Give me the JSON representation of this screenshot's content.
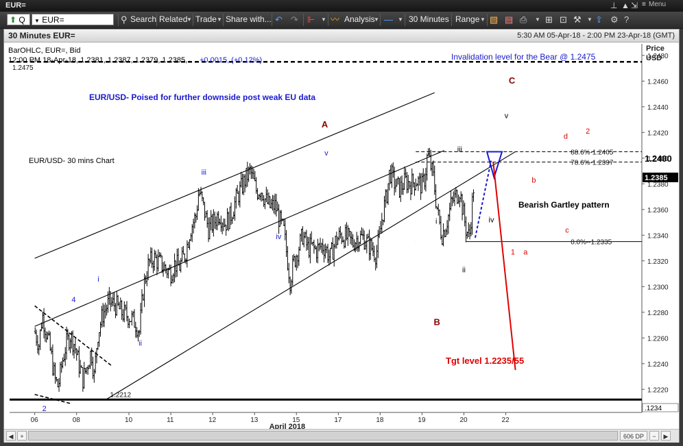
{
  "window": {
    "title": "EUR=",
    "menu_label": "Menu"
  },
  "toolbar": {
    "ric_prefix": "Q",
    "ric_value": "EUR=",
    "search": "Search",
    "related": "Related",
    "trade": "Trade",
    "share": "Share with...",
    "analysis": "Analysis",
    "interval": "30 Minutes",
    "range": "Range"
  },
  "chart_header": {
    "title": "30 Minutes EUR=",
    "date_range": "5:30 AM 05-Apr-18 - 2:00 PM 23-Apr-18 (GMT)"
  },
  "info": {
    "line1": "BarOHLC, EUR=, Bid",
    "line2_prefix": "12:00 PM 18-Apr-18, 1.2381, 1.2387, 1.2379, 1.2385,",
    "line2_change": "+0.0015, (+0.12%)"
  },
  "status": {
    "dp": "606 DP"
  },
  "colors": {
    "blue": "#1a1acc",
    "maroon": "#8b0000",
    "red": "#e00000",
    "bg": "#ffffff"
  },
  "chart_data": {
    "type": "bar",
    "title": "EUR/USD- Poised for further downside post weak EU data",
    "subtitle": "EUR/USD- 30 mins Chart",
    "y_axis_title": [
      "Price",
      "USD"
    ],
    "ylim": [
      1.2202,
      1.2489
    ],
    "y_ticks": [
      "1.2220",
      "1.2240",
      "1.2260",
      "1.2280",
      "1.2300",
      "1.2320",
      "1.2340",
      "1.2360",
      "1.2380",
      "1.2400",
      "1.2420",
      "1.2440",
      "1.2460",
      "1.2480"
    ],
    "x_ticks": [
      "06",
      "08",
      "10",
      "11",
      "12",
      "13",
      "15",
      "17",
      "18",
      "19",
      "20",
      "22"
    ],
    "x_axis_label": "April 2018",
    "last_price_label": "1.2385",
    "highlight_label": "1.2400",
    "corner_label": ".1234",
    "horizontal_levels": [
      {
        "value": 1.2475,
        "label": "1.2475",
        "style": "dashed-thick"
      },
      {
        "value": 1.2212,
        "label": "1.2212",
        "style": "solid-thick"
      },
      {
        "value": 1.2405,
        "label": "88.6%-1.2405",
        "style": "dashed"
      },
      {
        "value": 1.2397,
        "label": "78.6%-1.2397",
        "style": "dashed"
      },
      {
        "value": 1.2335,
        "label": "0.0%--1.2335",
        "style": "solid"
      }
    ],
    "annotations": {
      "invalidation": "Invalidation level for the Bear @ 1.2475",
      "pattern": "Bearish Gartley pattern",
      "target": "Tgt level 1.2235/55"
    },
    "wave_labels": [
      {
        "text": "A",
        "color": "maroon",
        "x": 6.85,
        "y": 1.2424
      },
      {
        "text": "B",
        "color": "maroon",
        "x": 9.53,
        "y": 1.227
      },
      {
        "text": "C",
        "color": "maroon",
        "x": 11.32,
        "y": 1.2458
      },
      {
        "text": "4",
        "color": "blue",
        "x": 0.88,
        "y": 1.2288
      },
      {
        "text": "i",
        "color": "blue",
        "x": 1.5,
        "y": 1.2304
      },
      {
        "text": "ii",
        "color": "blue",
        "x": 2.48,
        "y": 1.2254
      },
      {
        "text": "iii",
        "color": "blue",
        "x": 3.98,
        "y": 1.2387
      },
      {
        "text": "iv",
        "color": "blue",
        "x": 5.76,
        "y": 1.2337
      },
      {
        "text": "v",
        "color": "blue",
        "x": 6.92,
        "y": 1.2402
      },
      {
        "text": "i",
        "color": "black",
        "x": 9.57,
        "y": 1.2349
      },
      {
        "text": "ii",
        "color": "black",
        "x": 10.21,
        "y": 1.2311
      },
      {
        "text": "iii",
        "color": "black",
        "x": 10.09,
        "y": 1.2405
      },
      {
        "text": "iv",
        "color": "black",
        "x": 10.84,
        "y": 1.235
      },
      {
        "text": "v",
        "color": "black",
        "x": 11.22,
        "y": 1.2431
      },
      {
        "text": "1",
        "color": "red",
        "x": 11.37,
        "y": 1.2325
      },
      {
        "text": "a",
        "color": "red",
        "x": 11.67,
        "y": 1.2325
      },
      {
        "text": "b",
        "color": "red",
        "x": 11.87,
        "y": 1.2381
      },
      {
        "text": "c",
        "color": "red",
        "x": 12.67,
        "y": 1.2342
      },
      {
        "text": "d",
        "color": "red",
        "x": 12.63,
        "y": 1.2415
      },
      {
        "text": "2",
        "color": "red",
        "x": 13.16,
        "y": 1.2419
      },
      {
        "text": "2",
        "color": "blue",
        "x": 0.18,
        "y": 1.2203
      }
    ],
    "ohlc_series": {
      "name": "EUR=",
      "points": [
        [
          0.0,
          1.2265
        ],
        [
          0.1,
          1.2255
        ],
        [
          0.18,
          1.2278
        ],
        [
          0.3,
          1.2262
        ],
        [
          0.4,
          1.2245
        ],
        [
          0.48,
          1.2228
        ],
        [
          0.56,
          1.2222
        ],
        [
          0.65,
          1.224
        ],
        [
          0.75,
          1.2255
        ],
        [
          0.85,
          1.2262
        ],
        [
          0.95,
          1.2255
        ],
        [
          1.05,
          1.224
        ],
        [
          1.15,
          1.2228
        ],
        [
          1.25,
          1.2238
        ],
        [
          1.35,
          1.225
        ],
        [
          1.42,
          1.223
        ],
        [
          1.5,
          1.2262
        ],
        [
          1.62,
          1.2278
        ],
        [
          1.78,
          1.2288
        ],
        [
          1.95,
          1.2285
        ],
        [
          2.1,
          1.2279
        ],
        [
          2.25,
          1.2277
        ],
        [
          2.4,
          1.2272
        ],
        [
          2.5,
          1.2265
        ],
        [
          2.6,
          1.23
        ],
        [
          2.72,
          1.2318
        ],
        [
          2.85,
          1.2322
        ],
        [
          3.0,
          1.2318
        ],
        [
          3.15,
          1.2313
        ],
        [
          3.25,
          1.2311
        ],
        [
          3.35,
          1.2318
        ],
        [
          3.45,
          1.2315
        ],
        [
          3.6,
          1.2326
        ],
        [
          3.72,
          1.2345
        ],
        [
          3.85,
          1.2355
        ],
        [
          3.92,
          1.2375
        ],
        [
          4.02,
          1.2363
        ],
        [
          4.15,
          1.2345
        ],
        [
          4.28,
          1.235
        ],
        [
          4.4,
          1.2357
        ],
        [
          4.55,
          1.2349
        ],
        [
          4.68,
          1.2355
        ],
        [
          4.8,
          1.2367
        ],
        [
          4.95,
          1.2378
        ],
        [
          5.05,
          1.2385
        ],
        [
          5.15,
          1.239
        ],
        [
          5.22,
          1.2382
        ],
        [
          5.3,
          1.2374
        ],
        [
          5.4,
          1.2376
        ],
        [
          5.5,
          1.2368
        ],
        [
          5.62,
          1.2362
        ],
        [
          5.75,
          1.2363
        ],
        [
          5.85,
          1.2351
        ],
        [
          5.95,
          1.2343
        ],
        [
          6.02,
          1.2325
        ],
        [
          6.1,
          1.2305
        ],
        [
          6.18,
          1.2318
        ],
        [
          6.3,
          1.233
        ],
        [
          6.4,
          1.234
        ],
        [
          6.52,
          1.233
        ],
        [
          6.62,
          1.2331
        ],
        [
          6.72,
          1.2328
        ],
        [
          6.85,
          1.2332
        ],
        [
          6.95,
          1.233
        ],
        [
          7.05,
          1.2322
        ],
        [
          7.18,
          1.2335
        ],
        [
          7.3,
          1.234
        ],
        [
          7.45,
          1.2338
        ],
        [
          7.6,
          1.2334
        ],
        [
          7.72,
          1.2338
        ],
        [
          7.85,
          1.2338
        ],
        [
          7.95,
          1.2333
        ],
        [
          8.05,
          1.233
        ],
        [
          8.15,
          1.2325
        ],
        [
          8.22,
          1.2335
        ],
        [
          8.3,
          1.2355
        ],
        [
          8.4,
          1.237
        ],
        [
          8.48,
          1.239
        ],
        [
          8.6,
          1.238
        ],
        [
          8.72,
          1.2376
        ],
        [
          8.85,
          1.2382
        ],
        [
          8.98,
          1.238
        ],
        [
          9.12,
          1.2383
        ],
        [
          9.25,
          1.2378
        ],
        [
          9.32,
          1.2385
        ],
        [
          9.38,
          1.2403
        ],
        [
          9.45,
          1.2395
        ],
        [
          9.52,
          1.2385
        ],
        [
          9.58,
          1.2368
        ],
        [
          9.65,
          1.2352
        ],
        [
          9.72,
          1.234
        ],
        [
          9.8,
          1.2346
        ],
        [
          9.88,
          1.2355
        ],
        [
          9.95,
          1.2365
        ],
        [
          10.05,
          1.237
        ],
        [
          10.15,
          1.2375
        ],
        [
          10.22,
          1.236
        ],
        [
          10.3,
          1.2345
        ],
        [
          10.38,
          1.2338
        ],
        [
          10.45,
          1.2365
        ],
        [
          10.5,
          1.2385
        ]
      ]
    },
    "trendlines": [
      {
        "from": [
          0.0,
          1.2322
        ],
        "to": [
          9.55,
          1.2451
        ],
        "style": "solid"
      },
      {
        "from": [
          0.0,
          1.2269
        ],
        "to": [
          9.78,
          1.2406
        ],
        "style": "solid"
      },
      {
        "from": [
          1.7,
          1.2212
        ],
        "to": [
          11.48,
          1.2405
        ],
        "style": "solid"
      },
      {
        "from": [
          0.0,
          1.2285
        ],
        "to": [
          1.85,
          1.2238
        ],
        "style": "dashed"
      },
      {
        "from": [
          0.0,
          1.2216
        ],
        "to": [
          0.85,
          1.2209
        ],
        "style": "dashed"
      }
    ],
    "target_arrow": {
      "from": [
        10.95,
        1.2397
      ],
      "to": [
        11.48,
        1.2235
      ]
    },
    "gartley_triangle": [
      [
        10.8,
        1.2405
      ],
      [
        11.16,
        1.2405
      ],
      [
        10.97,
        1.2385
      ]
    ]
  }
}
